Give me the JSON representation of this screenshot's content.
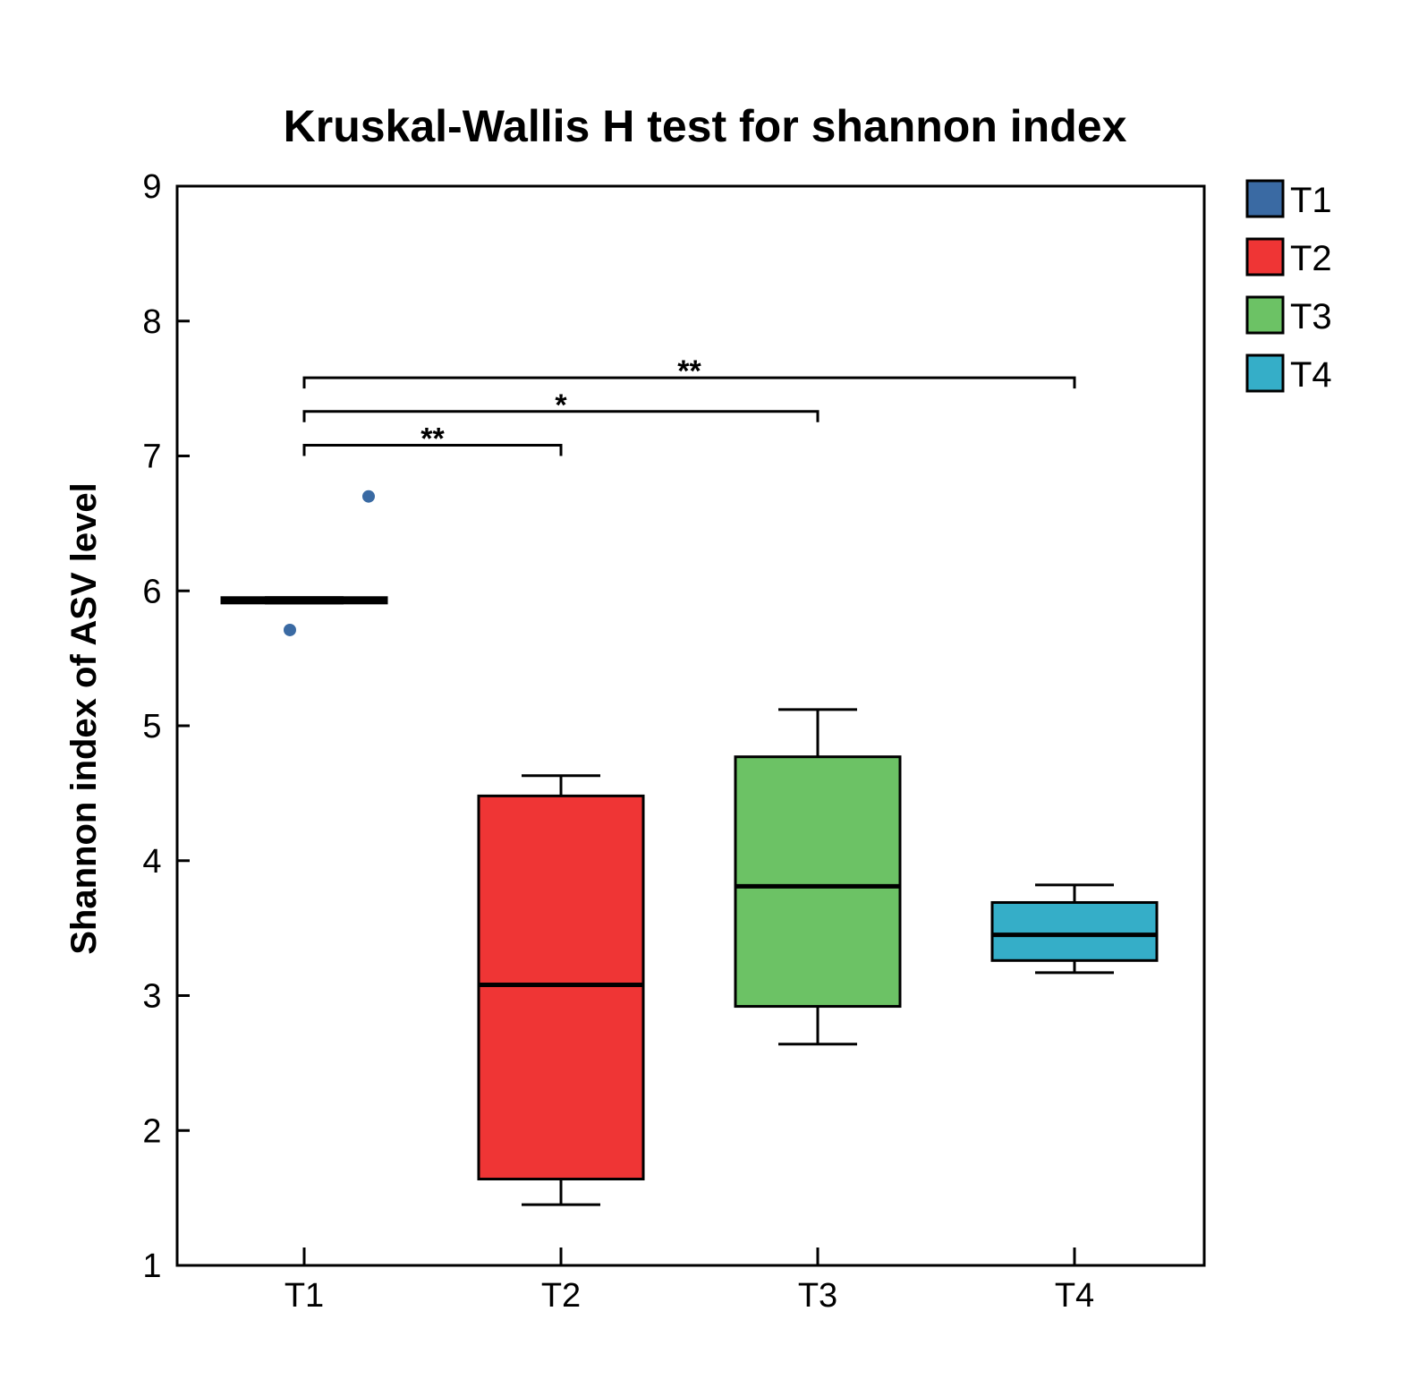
{
  "chart_data": {
    "type": "box",
    "title": "Kruskal-Wallis H test for shannon index",
    "xlabel": "",
    "ylabel": "Shannon index of ASV level",
    "ylim": [
      1,
      9
    ],
    "yticks": [
      "1",
      "2",
      "3",
      "4",
      "5",
      "6",
      "7",
      "8",
      "9"
    ],
    "categories": [
      "T1",
      "T2",
      "T3",
      "T4"
    ],
    "grid": false,
    "legend_position": "right-top",
    "groups": [
      {
        "name": "T1",
        "color": "#3a6aa3",
        "whisker_low": 5.91,
        "q1": 5.91,
        "median": 5.93,
        "q3": 5.95,
        "whisker_high": 5.95,
        "outliers": [
          5.71,
          6.7
        ]
      },
      {
        "name": "T2",
        "color": "#ef3535",
        "whisker_low": 1.45,
        "q1": 1.64,
        "median": 3.08,
        "q3": 4.48,
        "whisker_high": 4.63,
        "outliers": []
      },
      {
        "name": "T3",
        "color": "#6cc265",
        "whisker_low": 2.64,
        "q1": 2.92,
        "median": 3.81,
        "q3": 4.77,
        "whisker_high": 5.12,
        "outliers": []
      },
      {
        "name": "T4",
        "color": "#35aec8",
        "whisker_low": 3.17,
        "q1": 3.26,
        "median": 3.45,
        "q3": 3.69,
        "whisker_high": 3.82,
        "outliers": []
      }
    ],
    "significance": [
      {
        "from": "T1",
        "to": "T2",
        "label": "**",
        "level": 7.08
      },
      {
        "from": "T1",
        "to": "T3",
        "label": "*",
        "level": 7.33
      },
      {
        "from": "T1",
        "to": "T4",
        "label": "**",
        "level": 7.58
      }
    ]
  }
}
